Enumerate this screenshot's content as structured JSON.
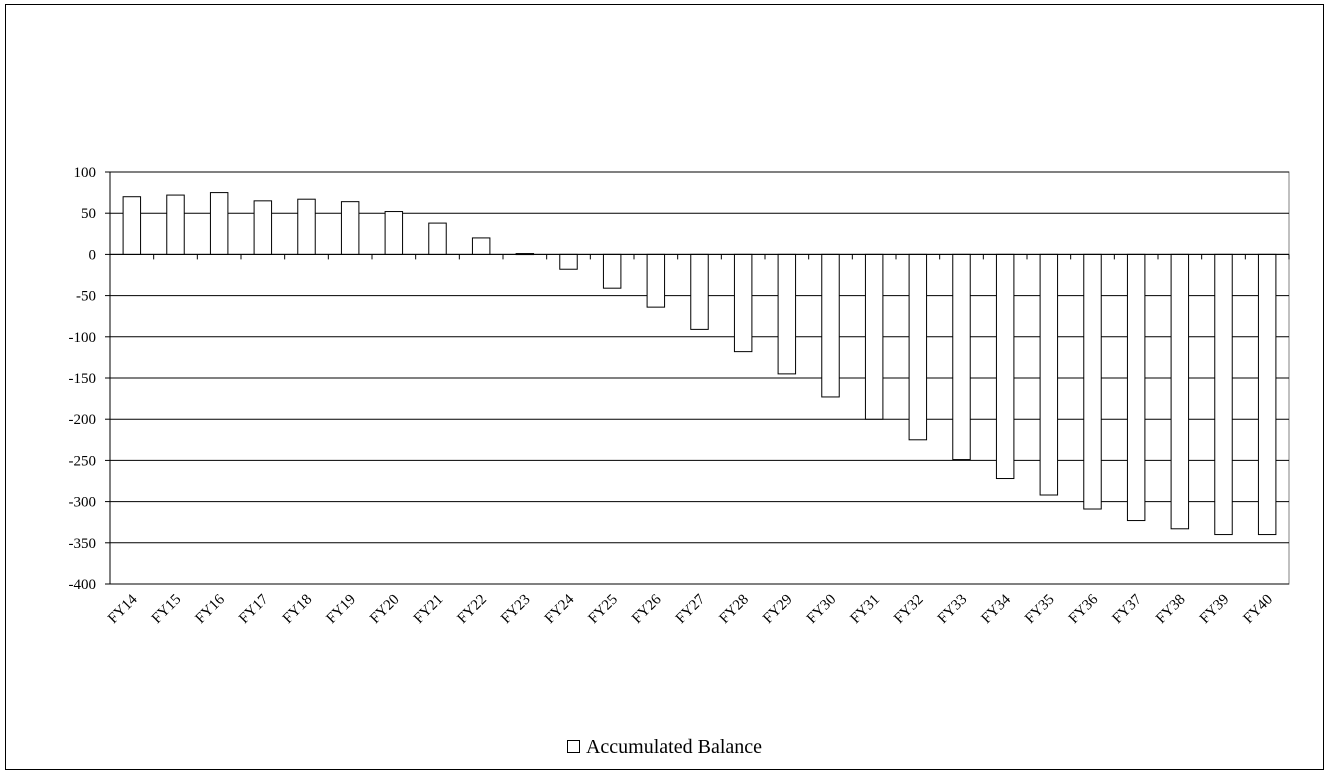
{
  "chart_data": {
    "type": "bar",
    "categories": [
      "FY14",
      "FY15",
      "FY16",
      "FY17",
      "FY18",
      "FY19",
      "FY20",
      "FY21",
      "FY22",
      "FY23",
      "FY24",
      "FY25",
      "FY26",
      "FY27",
      "FY28",
      "FY29",
      "FY30",
      "FY31",
      "FY32",
      "FY33",
      "FY34",
      "FY35",
      "FY36",
      "FY37",
      "FY38",
      "FY39",
      "FY40"
    ],
    "series": [
      {
        "name": "Accumulated Balance",
        "values": [
          70,
          72,
          75,
          65,
          67,
          64,
          52,
          38,
          20,
          1,
          -18,
          -41,
          -64,
          -91,
          -118,
          -145,
          -173,
          -200,
          -225,
          -249,
          -272,
          -292,
          -309,
          -323,
          -333,
          -340,
          -340
        ],
        "color": "#ffffff"
      }
    ],
    "ylim": [
      -400,
      100
    ],
    "yticks": [
      100,
      50,
      0,
      -50,
      -100,
      -150,
      -200,
      -250,
      -300,
      -350,
      -400
    ],
    "grid": true,
    "legend_position": "bottom"
  },
  "legend": {
    "label": "Accumulated Balance"
  }
}
